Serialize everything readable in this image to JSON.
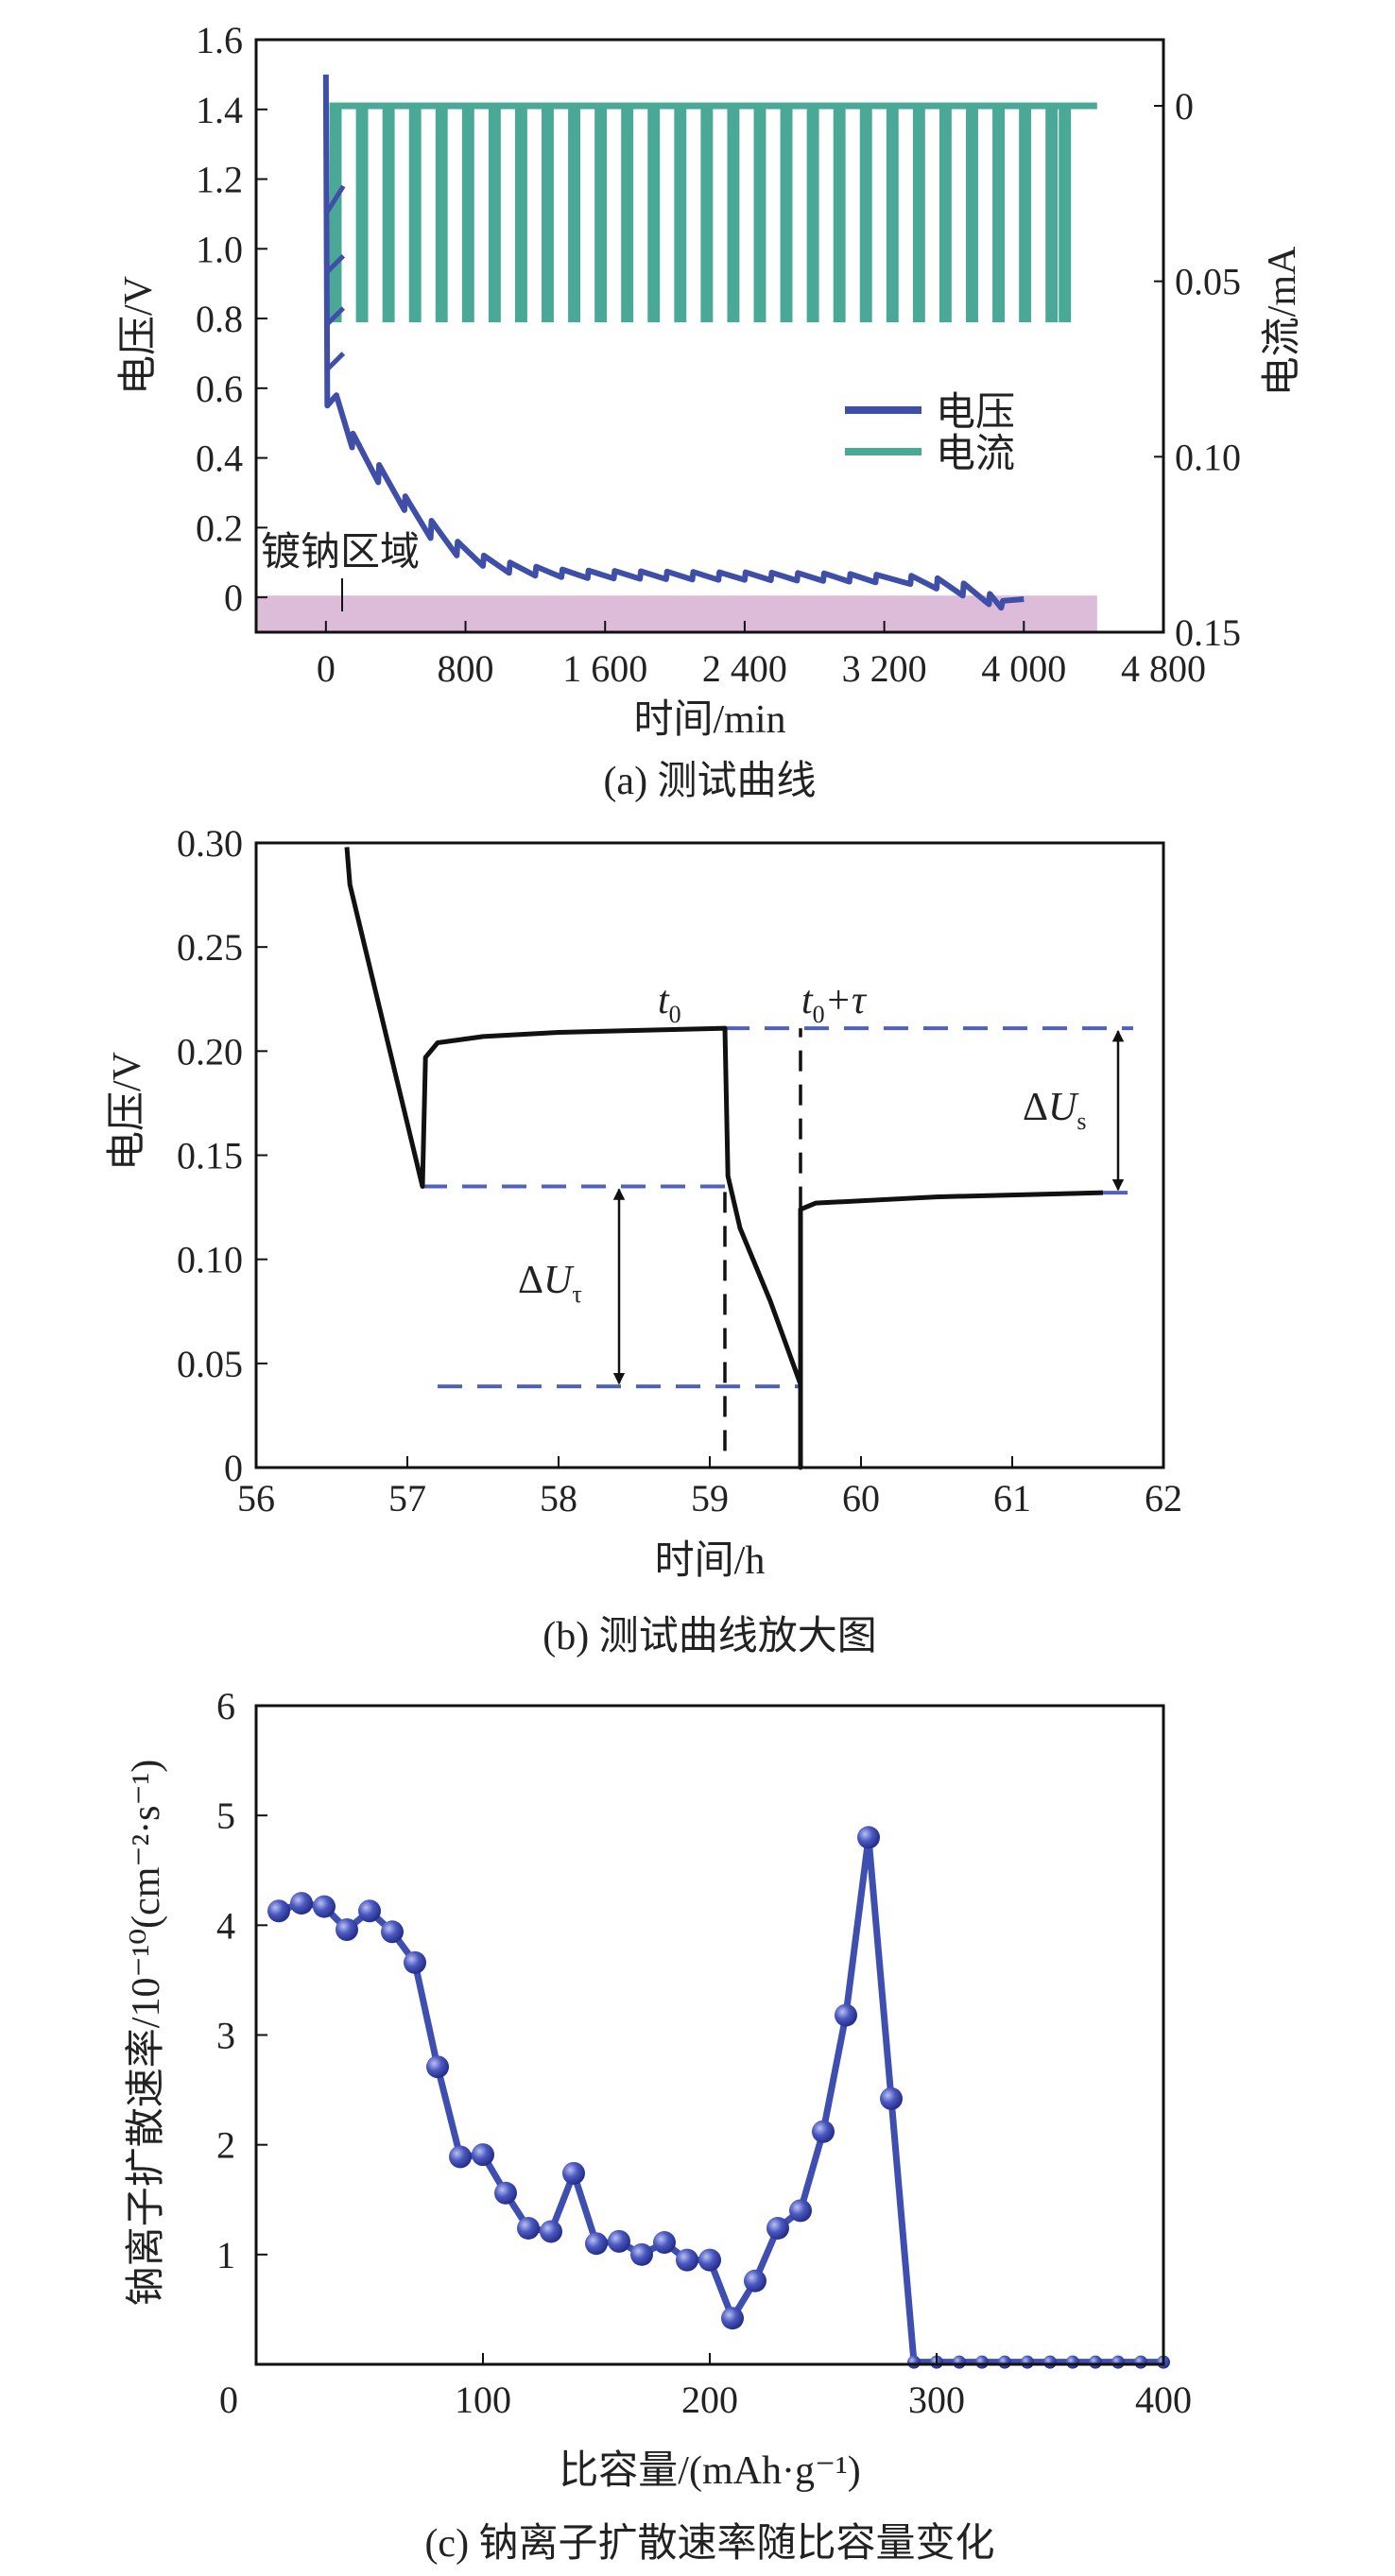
{
  "chart_data": [
    {
      "type": "line",
      "caption": "(a) 测试曲线",
      "xlabel": "时间/min",
      "ylabel": "电压/V",
      "y2label": "电流/mA",
      "xlim": [
        -400,
        4800
      ],
      "ylim": [
        -0.1,
        1.6
      ],
      "y2lim": [
        -0.0205,
        0.15
      ],
      "y2_inverted": true,
      "xticks": [
        "0",
        "800",
        "1 600",
        "2 400",
        "3 200",
        "4 000",
        "4 800"
      ],
      "xtick_values": [
        0,
        800,
        1600,
        2400,
        3200,
        4000,
        4800
      ],
      "yticks": [
        "0",
        "0.2",
        "0.4",
        "0.6",
        "0.8",
        "1.0",
        "1.2",
        "1.4",
        "1.6"
      ],
      "ytick_values": [
        0,
        0.2,
        0.4,
        0.6,
        0.8,
        1.0,
        1.2,
        1.4,
        1.6
      ],
      "y2ticks": [
        "0",
        "0.05",
        "0.10",
        "0.15"
      ],
      "y2tick_values": [
        0,
        0.05,
        0.1,
        0.15
      ],
      "legend": {
        "position": "center-right",
        "entries": [
          "电压",
          "电流"
        ]
      },
      "annotation": "镀钠区域",
      "plating_region": {
        "x": [
          -400,
          4420
        ],
        "y": [
          -0.1,
          0.005
        ],
        "color": "#dcbcd8"
      },
      "colors": {
        "voltage": "#3f4fa8",
        "current": "#4aa896"
      },
      "series": [
        {
          "name": "电压",
          "axis": "left",
          "points": [
            [
              0,
              1.5
            ],
            [
              8,
              0.55
            ],
            [
              60,
              0.58
            ],
            [
              150,
              0.43
            ],
            [
              155,
              0.47
            ],
            [
              300,
              0.33
            ],
            [
              305,
              0.38
            ],
            [
              450,
              0.25
            ],
            [
              455,
              0.29
            ],
            [
              600,
              0.17
            ],
            [
              605,
              0.22
            ],
            [
              750,
              0.12
            ],
            [
              755,
              0.16
            ],
            [
              900,
              0.09
            ],
            [
              905,
              0.12
            ],
            [
              1050,
              0.07
            ],
            [
              1055,
              0.1
            ],
            [
              1200,
              0.062
            ],
            [
              1205,
              0.088
            ],
            [
              1350,
              0.058
            ],
            [
              1355,
              0.08
            ],
            [
              1500,
              0.055
            ],
            [
              1505,
              0.077
            ],
            [
              1650,
              0.054
            ],
            [
              1655,
              0.076
            ],
            [
              1800,
              0.053
            ],
            [
              1805,
              0.075
            ],
            [
              1950,
              0.052
            ],
            [
              1955,
              0.074
            ],
            [
              2100,
              0.051
            ],
            [
              2105,
              0.073
            ],
            [
              2250,
              0.05
            ],
            [
              2255,
              0.072
            ],
            [
              2400,
              0.05
            ],
            [
              2405,
              0.072
            ],
            [
              2550,
              0.049
            ],
            [
              2555,
              0.071
            ],
            [
              2700,
              0.048
            ],
            [
              2705,
              0.07
            ],
            [
              2850,
              0.047
            ],
            [
              2855,
              0.069
            ],
            [
              3000,
              0.045
            ],
            [
              3005,
              0.067
            ],
            [
              3150,
              0.043
            ],
            [
              3155,
              0.065
            ],
            [
              3350,
              0.038
            ],
            [
              3355,
              0.062
            ],
            [
              3500,
              0.025
            ],
            [
              3505,
              0.055
            ],
            [
              3650,
              0.005
            ],
            [
              3655,
              0.04
            ],
            [
              3800,
              -0.02
            ],
            [
              3805,
              0.01
            ],
            [
              3870,
              -0.03
            ],
            [
              3880,
              -0.01
            ],
            [
              4000,
              -0.005
            ]
          ],
          "spikes": [
            [
              0,
              1.1,
              100,
              1.18
            ],
            [
              0,
              0.93,
              100,
              0.98
            ],
            [
              0,
              0.78,
              100,
              0.83
            ],
            [
              0,
              0.65,
              100,
              0.7
            ]
          ]
        },
        {
          "name": "电流",
          "axis": "right",
          "baseline": 0,
          "pulse_current": 0.0617,
          "pulse_duration": 70,
          "end": 4420,
          "pulse_starts": [
            20,
            172,
            324,
            476,
            628,
            780,
            932,
            1084,
            1236,
            1388,
            1540,
            1692,
            1844,
            1996,
            2148,
            2300,
            2452,
            2604,
            2756,
            2908,
            3060,
            3212,
            3364,
            3516,
            3668,
            3820,
            3972,
            4124,
            4200
          ]
        }
      ]
    },
    {
      "type": "line",
      "caption": "(b) 测试曲线放大图",
      "xlabel": "时间/h",
      "ylabel": "电压/V",
      "xlim": [
        56,
        62
      ],
      "ylim": [
        0,
        0.3
      ],
      "xticks": [
        "56",
        "57",
        "58",
        "59",
        "60",
        "61",
        "62"
      ],
      "xtick_values": [
        56,
        57,
        58,
        59,
        60,
        61,
        62
      ],
      "yticks": [
        "0",
        "0.05",
        "0.10",
        "0.15",
        "0.20",
        "0.25",
        "0.30"
      ],
      "ytick_values": [
        0,
        0.05,
        0.1,
        0.15,
        0.2,
        0.25,
        0.3
      ],
      "colors": {
        "curve": "#111111",
        "guide": "#5060c0"
      },
      "series": [
        {
          "points": [
            [
              56.6,
              0.298
            ],
            [
              56.62,
              0.28
            ],
            [
              57.1,
              0.135
            ],
            [
              57.12,
              0.197
            ],
            [
              57.2,
              0.204
            ],
            [
              57.5,
              0.207
            ],
            [
              58,
              0.209
            ],
            [
              59.1,
              0.211
            ],
            [
              59.12,
              0.14
            ],
            [
              59.2,
              0.115
            ],
            [
              59.4,
              0.08
            ],
            [
              59.6,
              0.04
            ],
            [
              59.6,
              0
            ],
            [
              59.6,
              0.124
            ],
            [
              59.7,
              0.127
            ],
            [
              60.5,
              0.13
            ],
            [
              61.6,
              0.132
            ]
          ]
        }
      ],
      "guides": [
        {
          "y": 0.211,
          "x": [
            59.1,
            61.8
          ]
        },
        {
          "y": 0.135,
          "x": [
            57.1,
            59.2
          ]
        },
        {
          "y": 0.039,
          "x": [
            57.2,
            59.6
          ]
        },
        {
          "y": 0.132,
          "x": [
            61.6,
            61.8
          ]
        }
      ],
      "markers": [
        {
          "x": 59.1,
          "y": [
            0.008,
            0.135
          ]
        },
        {
          "x": 59.6,
          "y": [
            0.125,
            0.211
          ]
        }
      ],
      "arrows": [
        {
          "x": 61.7,
          "y": [
            0.132,
            0.211
          ]
        },
        {
          "x": 58.4,
          "y": [
            0.039,
            0.135
          ]
        }
      ],
      "annotations": {
        "t0": {
          "main": "t",
          "sub": "0"
        },
        "t0tau": {
          "main": "t",
          "sub": "0",
          "rest": "+τ"
        },
        "dUs": {
          "delta": "Δ",
          "main": "U",
          "sub": "s"
        },
        "dUtau": {
          "delta": "Δ",
          "main": "U",
          "sub": "τ"
        }
      }
    },
    {
      "type": "line",
      "caption": "(c) 钠离子扩散速率随比容量变化",
      "xlabel": "比容量/(mAh·g⁻¹)",
      "ylabel": "钠离子扩散速率/10⁻¹⁰(cm⁻²·s⁻¹)",
      "xlim": [
        0,
        400
      ],
      "ylim": [
        0,
        6
      ],
      "xticks": [
        "0",
        "100",
        "200",
        "300",
        "400"
      ],
      "xtick_values": [
        0,
        100,
        200,
        300,
        400
      ],
      "yticks": [
        "1",
        "2",
        "3",
        "4",
        "5",
        "6"
      ],
      "ytick_values": [
        1,
        2,
        3,
        4,
        5,
        6
      ],
      "colors": {
        "series": "#3f4fb0"
      },
      "x": [
        10,
        20,
        30,
        40,
        50,
        60,
        70,
        80,
        90,
        100,
        110,
        120,
        130,
        140,
        150,
        160,
        170,
        180,
        190,
        200,
        210,
        220,
        230,
        240,
        250,
        260,
        270,
        280,
        290,
        300,
        310,
        320,
        330,
        340,
        350,
        360,
        370,
        380,
        390,
        400
      ],
      "y": [
        4.13,
        4.2,
        4.17,
        3.96,
        4.13,
        3.94,
        3.66,
        2.71,
        1.89,
        1.91,
        1.56,
        1.24,
        1.21,
        1.74,
        1.1,
        1.12,
        1.0,
        1.11,
        0.95,
        0.95,
        0.42,
        0.76,
        1.24,
        1.4,
        2.12,
        3.18,
        4.8,
        2.42,
        0.02,
        0.02,
        0.02,
        0.02,
        0.02,
        0.02,
        0.02,
        0.02,
        0.02,
        0.02,
        0.02,
        0.02
      ]
    }
  ]
}
